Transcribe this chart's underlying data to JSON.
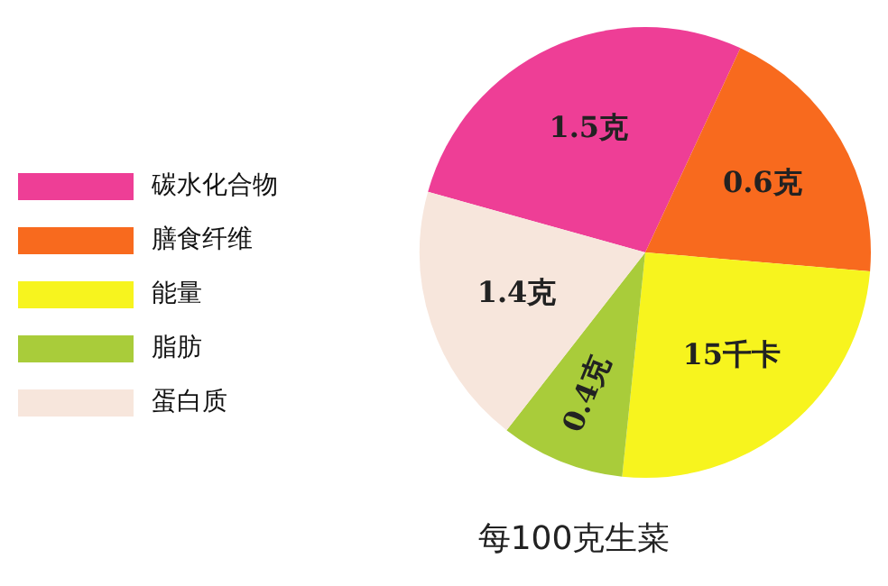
{
  "chart_data": {
    "type": "pie",
    "title": "每100克生菜",
    "categories": [
      "碳水化合物",
      "膳食纤维",
      "能量",
      "脂肪",
      "蛋白质"
    ],
    "values": [
      27.6,
      19.4,
      25.3,
      8.9,
      18.8
    ],
    "colors": [
      "#ee3e96",
      "#f86a1e",
      "#f7f41e",
      "#a9cc3a",
      "#f7e6dc"
    ],
    "annotations": [
      "1.5克",
      "0.6克",
      "15千卡",
      "0.4克",
      "1.4克"
    ],
    "legend": "left"
  }
}
